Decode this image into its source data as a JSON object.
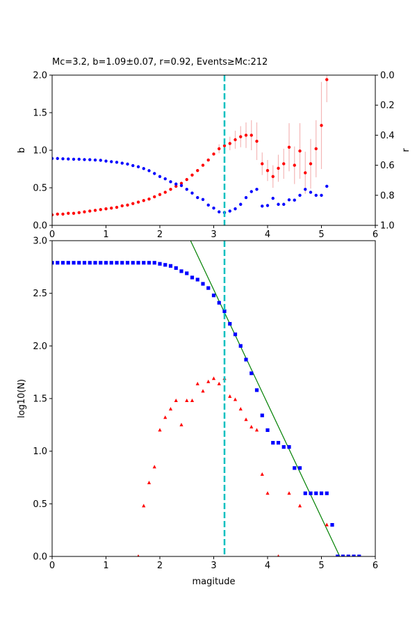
{
  "title": "Mc=3.2, b=1.09±0.07, r=0.92, Events≥Mc:212",
  "colors": {
    "b_series": "#ff0000",
    "b_error": "#f4b6b6",
    "r_series": "#0000ff",
    "mc_line": "#00bfbf",
    "fit_line": "#008000",
    "cumulative": "#0000ff",
    "noncumulative": "#ff0000"
  },
  "chart_data": [
    {
      "type": "scatter",
      "panel": "top",
      "title": "Mc=3.2, b=1.09±0.07, r=0.92, Events≥Mc:212",
      "xlabel": "",
      "ylabel": "b",
      "ylabel_right": "r",
      "xlim": [
        0,
        6
      ],
      "ylim": [
        0,
        2.0
      ],
      "ylim_right": [
        1.0,
        0.0
      ],
      "xticks": [
        "0",
        "1",
        "2",
        "3",
        "4",
        "5",
        "6"
      ],
      "yticks": [
        "0.0",
        "0.5",
        "1.0",
        "1.5",
        "2.0"
      ],
      "yticks_right": [
        "0.0",
        "0.2",
        "0.4",
        "0.6",
        "0.8",
        "1.0"
      ],
      "mc": 3.2,
      "series": [
        {
          "name": "b",
          "axis": "left",
          "x": [
            0.0,
            0.1,
            0.2,
            0.3,
            0.4,
            0.5,
            0.6,
            0.7,
            0.8,
            0.9,
            1.0,
            1.1,
            1.2,
            1.3,
            1.4,
            1.5,
            1.6,
            1.7,
            1.8,
            1.9,
            2.0,
            2.1,
            2.2,
            2.3,
            2.4,
            2.5,
            2.6,
            2.7,
            2.8,
            2.9,
            3.0,
            3.1,
            3.2,
            3.3,
            3.4,
            3.5,
            3.6,
            3.7,
            3.8,
            3.9,
            4.0,
            4.1,
            4.2,
            4.3,
            4.4,
            4.5,
            4.6,
            4.7,
            4.8,
            4.9,
            5.0,
            5.1
          ],
          "y": [
            0.14,
            0.15,
            0.15,
            0.16,
            0.16,
            0.17,
            0.18,
            0.19,
            0.2,
            0.21,
            0.22,
            0.23,
            0.24,
            0.26,
            0.27,
            0.29,
            0.31,
            0.33,
            0.35,
            0.38,
            0.41,
            0.44,
            0.48,
            0.52,
            0.56,
            0.61,
            0.67,
            0.73,
            0.8,
            0.87,
            0.95,
            1.02,
            1.06,
            1.09,
            1.14,
            1.18,
            1.2,
            1.2,
            1.12,
            0.82,
            0.73,
            0.65,
            0.76,
            0.82,
            1.04,
            0.8,
            0.99,
            0.7,
            0.82,
            1.02,
            1.33,
            1.94
          ],
          "err": [
            0,
            0,
            0,
            0,
            0,
            0,
            0,
            0,
            0,
            0,
            0,
            0,
            0,
            0,
            0,
            0,
            0,
            0,
            0,
            0,
            0,
            0,
            0,
            0,
            0,
            0,
            0,
            0,
            0,
            0,
            0,
            0.06,
            0.07,
            0.09,
            0.12,
            0.14,
            0.17,
            0.2,
            0.25,
            0.15,
            0.14,
            0.15,
            0.18,
            0.2,
            0.32,
            0.25,
            0.37,
            0.28,
            0.33,
            0.38,
            0.58,
            0.3
          ]
        },
        {
          "name": "r",
          "axis": "right",
          "x": [
            0.0,
            0.1,
            0.2,
            0.3,
            0.4,
            0.5,
            0.6,
            0.7,
            0.8,
            0.9,
            1.0,
            1.1,
            1.2,
            1.3,
            1.4,
            1.5,
            1.6,
            1.7,
            1.8,
            1.9,
            2.0,
            2.1,
            2.2,
            2.3,
            2.4,
            2.5,
            2.6,
            2.7,
            2.8,
            2.9,
            3.0,
            3.1,
            3.2,
            3.3,
            3.4,
            3.5,
            3.6,
            3.7,
            3.8,
            3.9,
            4.0,
            4.1,
            4.2,
            4.3,
            4.4,
            4.5,
            4.6,
            4.7,
            4.8,
            4.9,
            5.0,
            5.1
          ],
          "y": [
            0.555,
            0.555,
            0.557,
            0.558,
            0.56,
            0.56,
            0.562,
            0.563,
            0.565,
            0.567,
            0.572,
            0.576,
            0.58,
            0.586,
            0.592,
            0.602,
            0.61,
            0.622,
            0.636,
            0.655,
            0.675,
            0.69,
            0.71,
            0.725,
            0.735,
            0.76,
            0.785,
            0.815,
            0.828,
            0.865,
            0.885,
            0.91,
            0.915,
            0.905,
            0.89,
            0.86,
            0.815,
            0.775,
            0.76,
            0.872,
            0.868,
            0.82,
            0.86,
            0.86,
            0.83,
            0.832,
            0.8,
            0.76,
            0.78,
            0.8,
            0.8,
            0.74
          ]
        }
      ]
    },
    {
      "type": "scatter",
      "panel": "bottom",
      "xlabel": "magitude",
      "ylabel": "log10(N)",
      "xlim": [
        0,
        6
      ],
      "ylim": [
        0,
        3.0
      ],
      "xticks": [
        "0",
        "1",
        "2",
        "3",
        "4",
        "5",
        "6"
      ],
      "yticks": [
        "0.0",
        "0.5",
        "1.0",
        "1.5",
        "2.0",
        "2.5",
        "3.0"
      ],
      "mc": 3.2,
      "fit_line": {
        "x": [
          2.57,
          5.34
        ],
        "y": [
          3.0,
          0.0
        ]
      },
      "series": [
        {
          "name": "cumulative",
          "marker": "square",
          "x": [
            0.0,
            0.1,
            0.2,
            0.3,
            0.4,
            0.5,
            0.6,
            0.7,
            0.8,
            0.9,
            1.0,
            1.1,
            1.2,
            1.3,
            1.4,
            1.5,
            1.6,
            1.7,
            1.8,
            1.9,
            2.0,
            2.1,
            2.2,
            2.3,
            2.4,
            2.5,
            2.6,
            2.7,
            2.8,
            2.9,
            3.0,
            3.1,
            3.2,
            3.3,
            3.4,
            3.5,
            3.6,
            3.7,
            3.8,
            3.9,
            4.0,
            4.1,
            4.2,
            4.3,
            4.4,
            4.5,
            4.6,
            4.7,
            4.8,
            4.9,
            5.0,
            5.1,
            5.2,
            5.3,
            5.4,
            5.5,
            5.6,
            5.7
          ],
          "y": [
            2.79,
            2.79,
            2.79,
            2.79,
            2.79,
            2.79,
            2.79,
            2.79,
            2.79,
            2.79,
            2.79,
            2.79,
            2.79,
            2.79,
            2.79,
            2.79,
            2.79,
            2.79,
            2.79,
            2.79,
            2.78,
            2.77,
            2.76,
            2.74,
            2.71,
            2.69,
            2.65,
            2.63,
            2.59,
            2.55,
            2.48,
            2.41,
            2.33,
            2.21,
            2.11,
            2.0,
            1.87,
            1.74,
            1.58,
            1.34,
            1.2,
            1.08,
            1.08,
            1.04,
            1.04,
            0.84,
            0.84,
            0.6,
            0.6,
            0.6,
            0.6,
            0.6,
            0.3,
            0.0,
            0.0,
            0.0,
            0.0,
            0.0
          ]
        },
        {
          "name": "noncumulative",
          "marker": "triangle",
          "x": [
            1.6,
            1.7,
            1.8,
            1.9,
            2.0,
            2.1,
            2.2,
            2.3,
            2.4,
            2.5,
            2.6,
            2.7,
            2.8,
            2.9,
            3.0,
            3.1,
            3.2,
            3.3,
            3.4,
            3.5,
            3.6,
            3.7,
            3.8,
            3.9,
            4.0,
            4.2,
            4.4,
            4.6,
            5.1
          ],
          "y": [
            0.0,
            0.48,
            0.7,
            0.85,
            1.2,
            1.32,
            1.4,
            1.48,
            1.25,
            1.48,
            1.48,
            1.64,
            1.57,
            1.66,
            1.69,
            1.64,
            1.69,
            1.52,
            1.49,
            1.4,
            1.3,
            1.23,
            1.2,
            0.78,
            0.6,
            0.0,
            0.6,
            0.48,
            0.3
          ]
        }
      ]
    }
  ]
}
